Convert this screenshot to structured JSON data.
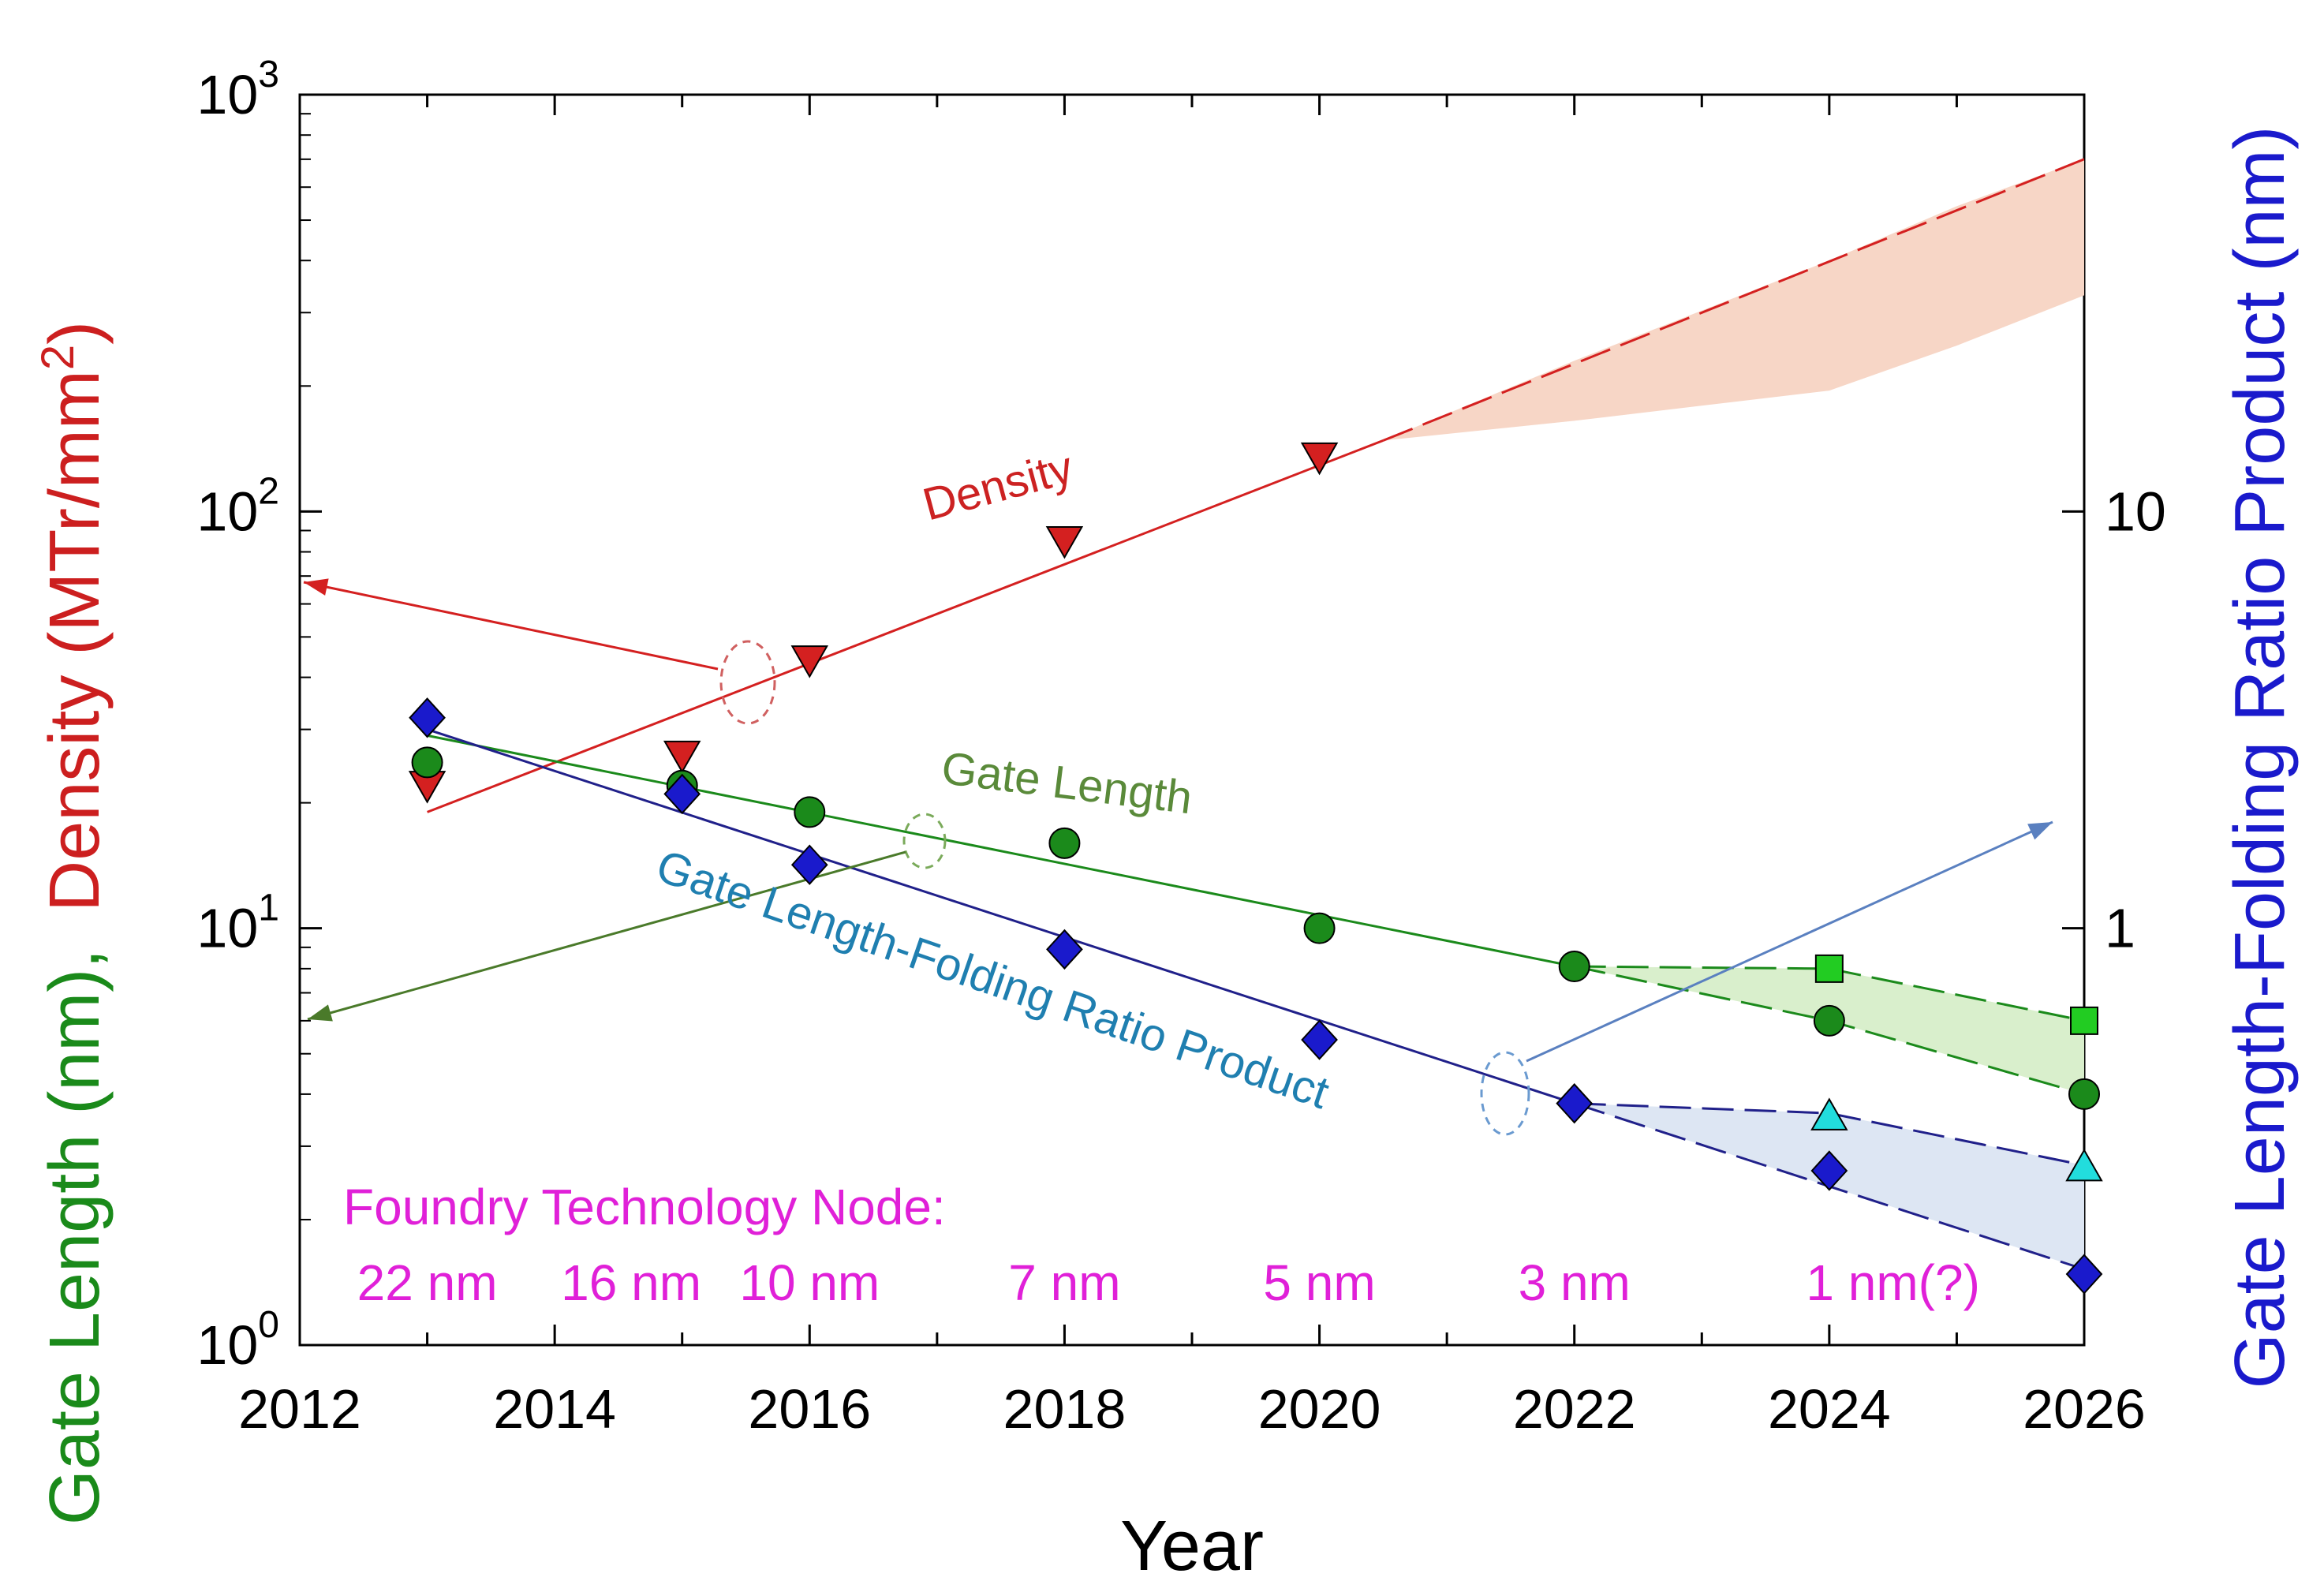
{
  "chart_data": {
    "type": "scatter",
    "xlabel": "Year",
    "ylabel_left_parts": [
      {
        "text": "Gate Length (nm),",
        "color": "#1a8a1a"
      },
      {
        "text": "Density (MTr/mm",
        "color": "#cc1f1f"
      },
      {
        "text": "2",
        "color": "#cc1f1f"
      },
      {
        "text": ")",
        "color": "#cc1f1f"
      }
    ],
    "ylabel_right": "Gate Length-Folding Ratio Product (nm)",
    "xlim": [
      2012,
      2026
    ],
    "x_ticks": [
      "2012",
      "2014",
      "2016",
      "2018",
      "2020",
      "2022",
      "2024",
      "2026"
    ],
    "y_left_scale": "log",
    "y_left_lim": [
      1,
      1000
    ],
    "y_left_ticks": [
      {
        "base": "10",
        "exp": "0",
        "value": 1
      },
      {
        "base": "10",
        "exp": "1",
        "value": 10
      },
      {
        "base": "10",
        "exp": "2",
        "value": 100
      },
      {
        "base": "10",
        "exp": "3",
        "value": 1000
      }
    ],
    "y_right_scale": "log",
    "y_right_lim": [
      0.1,
      100
    ],
    "y_right_ticks": [
      {
        "label": "1",
        "value": 1
      },
      {
        "label": "10",
        "value": 10
      }
    ],
    "series": [
      {
        "name": "Density",
        "axis": "left",
        "color": "#d42020",
        "marker": "triangle-down",
        "points": [
          [
            2013,
            22
          ],
          [
            2015,
            26
          ],
          [
            2016,
            44
          ],
          [
            2018,
            85
          ],
          [
            2020,
            135
          ]
        ],
        "fit_solid": [
          [
            2013,
            19
          ],
          [
            2020.5,
            148
          ]
        ],
        "fit_dashed": [
          [
            2020.5,
            148
          ],
          [
            2026,
            700
          ]
        ],
        "band": {
          "x": [
            2020.5,
            2022,
            2024,
            2025,
            2026
          ],
          "upper": [
            148,
            230,
            400,
            540,
            700
          ],
          "lower": [
            148,
            165,
            195,
            250,
            330
          ]
        },
        "band_color": "#f7d6c6"
      },
      {
        "name": "Gate Length",
        "axis": "left",
        "color": "#1b8a1b",
        "marker": "circle",
        "points": [
          [
            2013,
            25
          ],
          [
            2015,
            22
          ],
          [
            2016,
            19
          ],
          [
            2018,
            16
          ],
          [
            2020,
            10
          ],
          [
            2022,
            8.1
          ],
          [
            2024,
            6
          ],
          [
            2026,
            4
          ]
        ],
        "fit_solid": [
          [
            2013,
            29
          ],
          [
            2022,
            8.1
          ]
        ],
        "fit_dashed_upper": [
          [
            2022,
            8.1
          ],
          [
            2024,
            8
          ],
          [
            2026,
            6
          ]
        ],
        "fit_dashed_lower": [
          [
            2022,
            8.1
          ],
          [
            2024,
            6.0
          ],
          [
            2026,
            4
          ]
        ],
        "extra_markers": {
          "marker": "square",
          "color": "#22cc22",
          "points": [
            [
              2024,
              8
            ],
            [
              2026,
              6
            ]
          ]
        },
        "band_color": "#d9efcc"
      },
      {
        "name": "Gate Length-Folding Ratio Product",
        "axis": "right",
        "color": "#1a1acc",
        "marker": "diamond",
        "points": [
          [
            2013,
            3.2
          ],
          [
            2015,
            2.1
          ],
          [
            2016,
            1.42
          ],
          [
            2018,
            0.89
          ],
          [
            2020,
            0.54
          ],
          [
            2022,
            0.38
          ],
          [
            2024,
            0.262
          ],
          [
            2026,
            0.148
          ]
        ],
        "fit_solid": [
          [
            2013,
            3.0
          ],
          [
            2022,
            0.38
          ]
        ],
        "fit_dashed_upper": [
          [
            2022,
            0.38
          ],
          [
            2024,
            0.36
          ],
          [
            2026,
            0.27
          ]
        ],
        "fit_dashed_lower": [
          [
            2022,
            0.38
          ],
          [
            2026,
            0.152
          ]
        ],
        "extra_markers": {
          "marker": "triangle-up",
          "color": "#22dddd",
          "points": [
            [
              2024,
              0.355
            ],
            [
              2026,
              0.268
            ]
          ]
        },
        "band_color": "#dde6f3"
      }
    ],
    "series_labels": {
      "density": "Density",
      "gate_length": "Gate Length",
      "product": "Gate Length-Folding Ratio Product"
    },
    "foundry_title": "Foundry Technology Node:",
    "foundry_nodes": [
      {
        "label": "22 nm",
        "year": 2013
      },
      {
        "label": "16 nm",
        "year": 2014.6
      },
      {
        "label": "10 nm",
        "year": 2016
      },
      {
        "label": "7 nm",
        "year": 2018
      },
      {
        "label": "5 nm",
        "year": 2020
      },
      {
        "label": "3 nm",
        "year": 2022
      },
      {
        "label": "1 nm(?)",
        "year": 2024.5
      }
    ]
  }
}
